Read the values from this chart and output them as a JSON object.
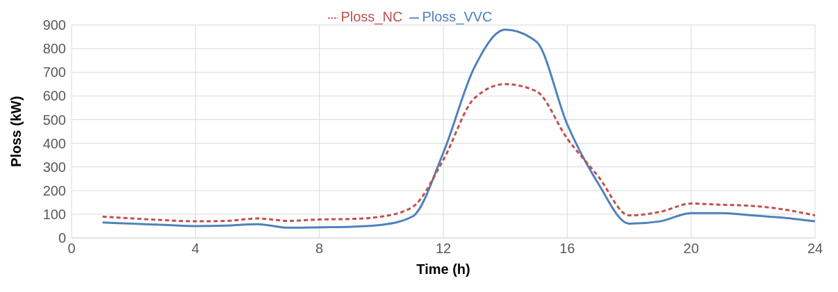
{
  "chart_data": {
    "type": "line",
    "xlabel": "Time (h)",
    "ylabel": "Ploss (kW)",
    "x": [
      1,
      2,
      3,
      4,
      5,
      6,
      7,
      8,
      9,
      10,
      11,
      12,
      13,
      14,
      15,
      16,
      17,
      18,
      19,
      20,
      21,
      22,
      23,
      24
    ],
    "series": [
      {
        "name": "Ploss_VVC",
        "color": "#4f81bd",
        "line_style": "solid",
        "values": [
          65,
          60,
          55,
          50,
          52,
          58,
          43,
          45,
          47,
          55,
          90,
          360,
          720,
          880,
          830,
          480,
          230,
          60,
          70,
          105,
          105,
          95,
          85,
          70
        ]
      },
      {
        "name": "Ploss_NC",
        "color": "#c0504d",
        "line_style": "dashed",
        "values": [
          90,
          82,
          75,
          70,
          72,
          82,
          72,
          78,
          80,
          90,
          130,
          330,
          590,
          650,
          620,
          420,
          260,
          95,
          110,
          145,
          140,
          135,
          120,
          95
        ]
      }
    ],
    "xlim": [
      0,
      24
    ],
    "xticks": [
      0,
      4,
      8,
      12,
      16,
      20,
      24
    ],
    "ylim": [
      0,
      900
    ],
    "yticks": [
      0,
      100,
      200,
      300,
      400,
      500,
      600,
      700,
      800,
      900
    ],
    "grid": true,
    "legend": "top",
    "marker": "none"
  }
}
